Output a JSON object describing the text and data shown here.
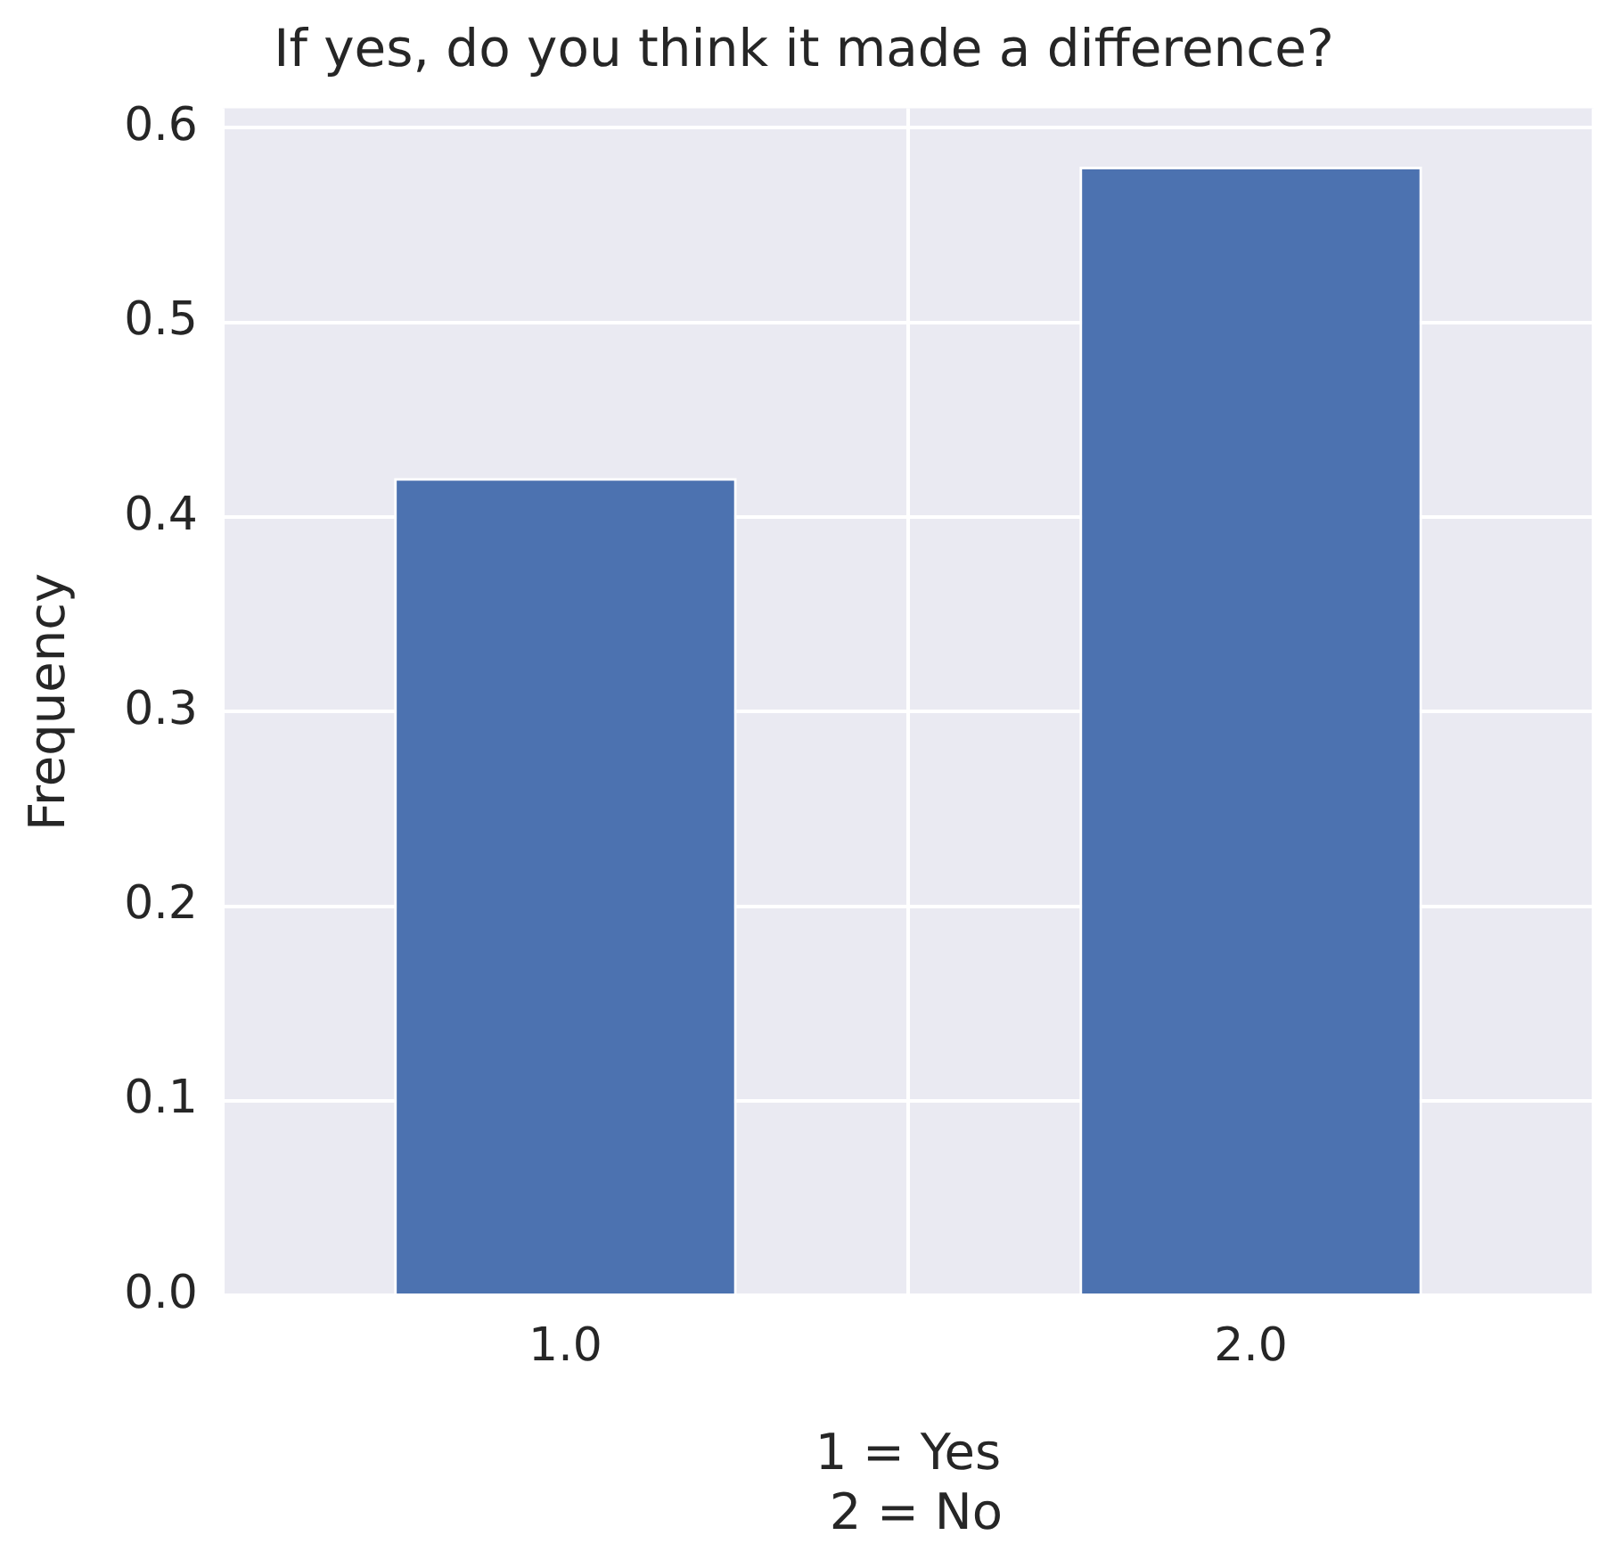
{
  "chart_data": {
    "type": "bar",
    "title": "If yes, do you think it made a difference?",
    "xlabel": "1 = Yes\n 2 = No",
    "ylabel": "Frequency",
    "categories": [
      "1.0",
      "2.0"
    ],
    "values": [
      0.42,
      0.58
    ],
    "color": "#4c72b0",
    "ylim": [
      0,
      0.61
    ],
    "yticks": [
      {
        "value": 0,
        "label": "0.0"
      },
      0.1,
      0.2,
      0.3,
      0.4,
      0.5,
      0.6
    ],
    "grid": true,
    "legend": false
  }
}
